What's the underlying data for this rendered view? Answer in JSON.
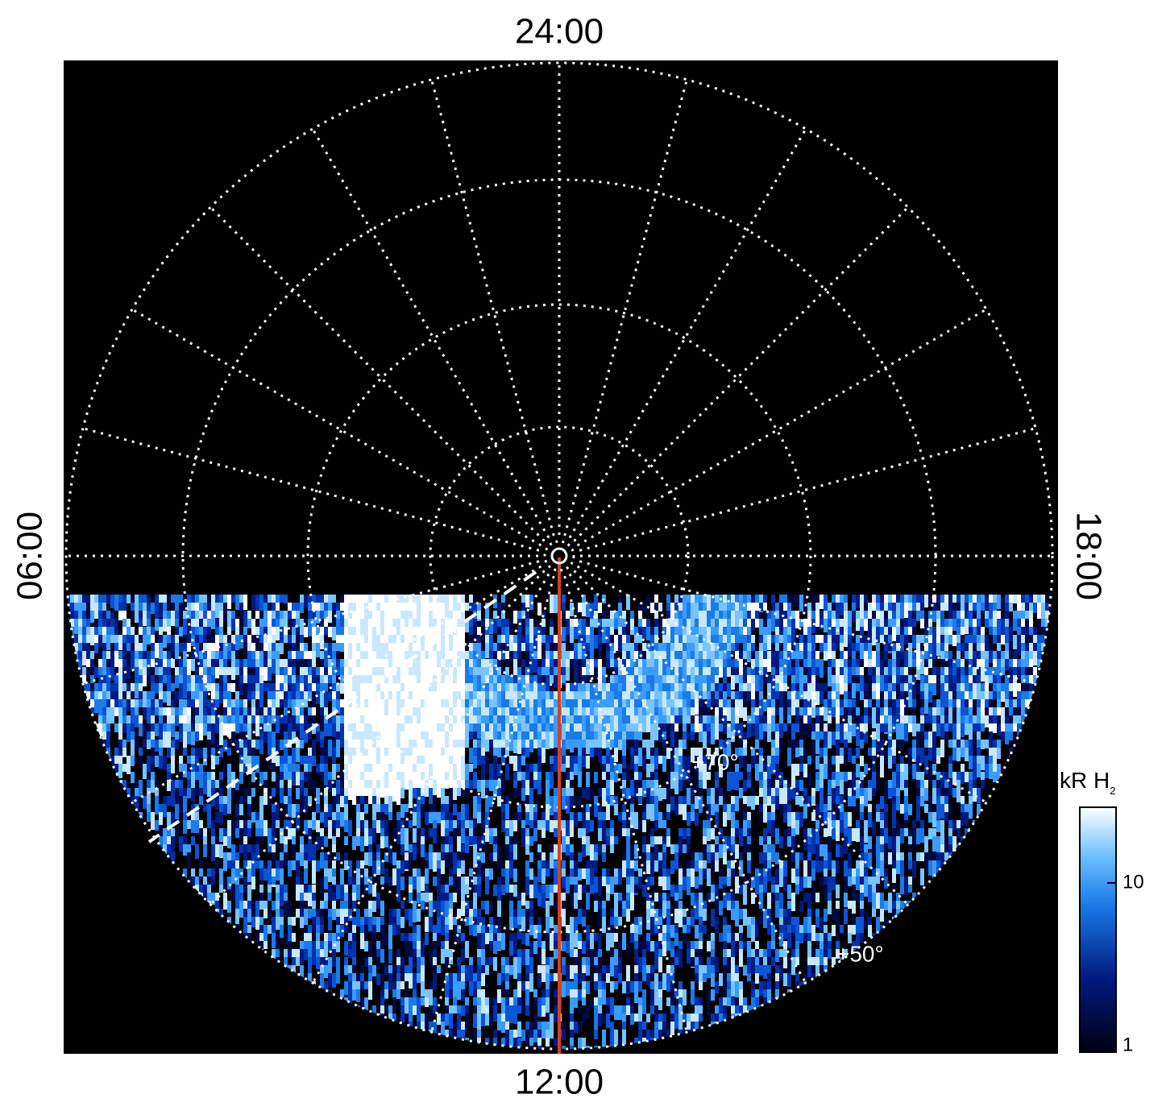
{
  "labels": {
    "top": "24:00",
    "bottom": "12:00",
    "left": "06:00",
    "right": "18:00"
  },
  "latitude_labels": [
    "+70°",
    "+50°"
  ],
  "colorbar": {
    "title": "kR H",
    "title_subscript": "2",
    "log_scale": true,
    "lim": [
      1,
      28
    ],
    "ticks": [
      1,
      10
    ]
  }
}
